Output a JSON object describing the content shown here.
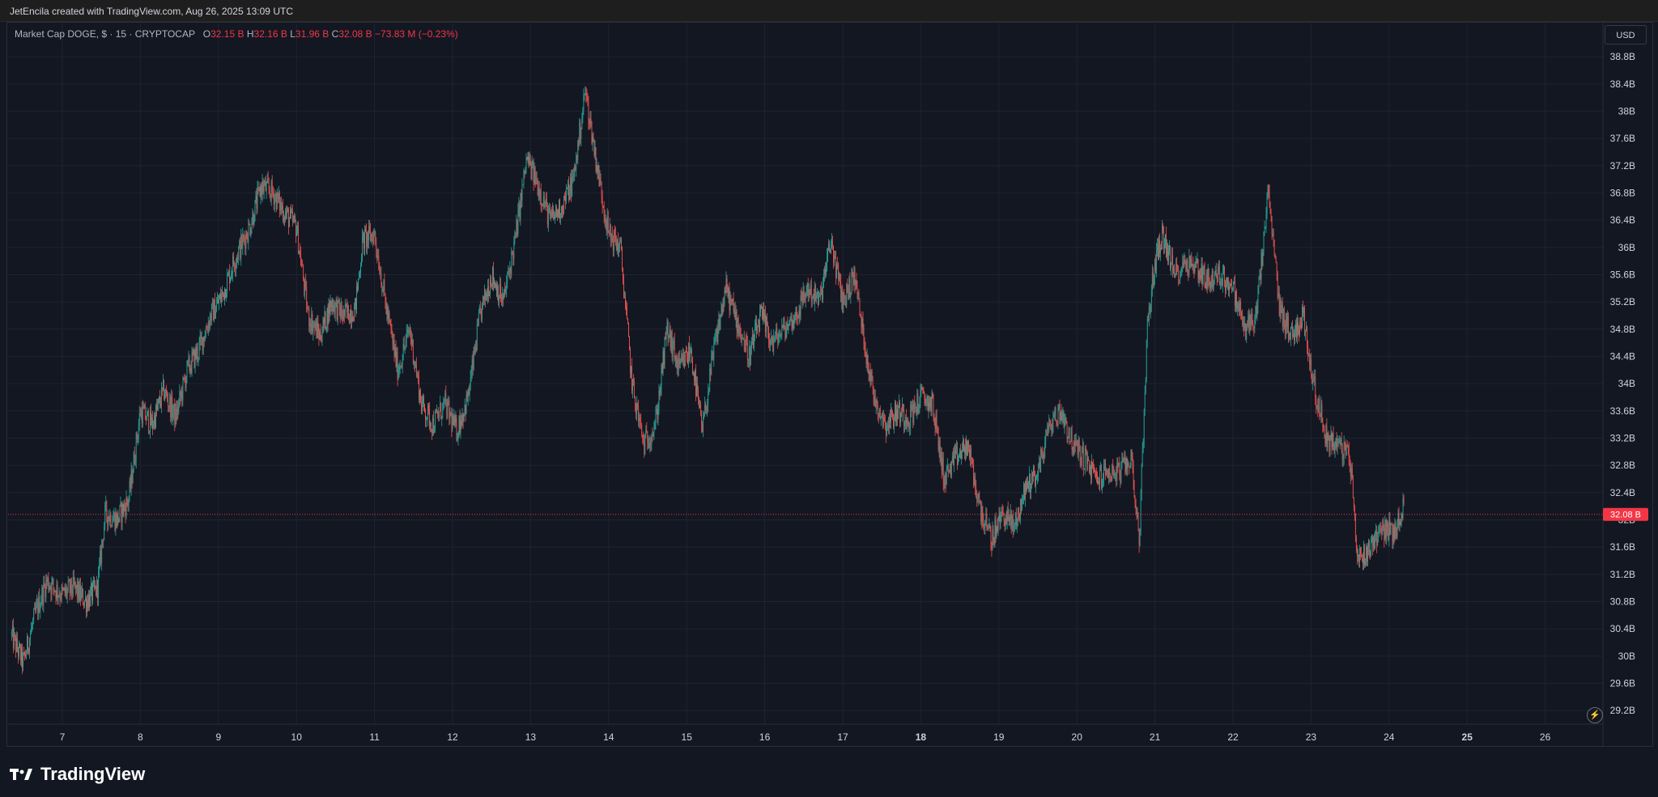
{
  "header": {
    "credit": "JetEncila created with TradingView.com, Aug 26, 2025 13:09 UTC"
  },
  "legend": {
    "symbol": "Market Cap DOGE, $ · 15 · CRYPTOCAP",
    "o_label": "O",
    "o_value": "32.15 B",
    "h_label": "H",
    "h_value": "32.16 B",
    "l_label": "L",
    "l_value": "31.96 B",
    "c_label": "C",
    "c_value": "32.08 B",
    "change": "−73.83 M (−0.23%)"
  },
  "controls": {
    "currency": "USD",
    "bolt_icon": "⚡"
  },
  "footer": {
    "brand": "TradingView"
  },
  "colors": {
    "up": "#26a69a",
    "down": "#ef5350",
    "grid": "#1f2330",
    "price_line": "#f23645"
  },
  "chart_data": {
    "type": "candlestick",
    "currency": "USD",
    "interval": "15",
    "ylim": [
      29.0,
      39.3
    ],
    "yticks": [
      "29.2B",
      "29.6B",
      "30B",
      "30.4B",
      "30.8B",
      "31.2B",
      "31.6B",
      "32B",
      "32.4B",
      "32.8B",
      "33.2B",
      "33.6B",
      "34B",
      "34.4B",
      "34.8B",
      "35.2B",
      "35.6B",
      "36B",
      "36.4B",
      "36.8B",
      "37.2B",
      "37.6B",
      "38B",
      "38.4B",
      "38.8B"
    ],
    "ytick_values": [
      29.2,
      29.6,
      30.0,
      30.4,
      30.8,
      31.2,
      31.6,
      32.0,
      32.4,
      32.8,
      33.2,
      33.6,
      34.0,
      34.4,
      34.8,
      35.2,
      35.6,
      36.0,
      36.4,
      36.8,
      37.2,
      37.6,
      38.0,
      38.4,
      38.8
    ],
    "xticks": [
      {
        "label": "7",
        "day": 7,
        "bold": false
      },
      {
        "label": "8",
        "day": 8,
        "bold": false
      },
      {
        "label": "9",
        "day": 9,
        "bold": false
      },
      {
        "label": "10",
        "day": 10,
        "bold": false
      },
      {
        "label": "11",
        "day": 11,
        "bold": false
      },
      {
        "label": "12",
        "day": 12,
        "bold": false
      },
      {
        "label": "13",
        "day": 13,
        "bold": false
      },
      {
        "label": "14",
        "day": 14,
        "bold": false
      },
      {
        "label": "15",
        "day": 15,
        "bold": false
      },
      {
        "label": "16",
        "day": 16,
        "bold": false
      },
      {
        "label": "17",
        "day": 17,
        "bold": false
      },
      {
        "label": "18",
        "day": 18,
        "bold": true
      },
      {
        "label": "19",
        "day": 19,
        "bold": false
      },
      {
        "label": "20",
        "day": 20,
        "bold": false
      },
      {
        "label": "21",
        "day": 21,
        "bold": false
      },
      {
        "label": "22",
        "day": 22,
        "bold": false
      },
      {
        "label": "23",
        "day": 23,
        "bold": false
      },
      {
        "label": "24",
        "day": 24,
        "bold": false
      },
      {
        "label": "25",
        "day": 25,
        "bold": true
      },
      {
        "label": "26",
        "day": 26,
        "bold": false
      }
    ],
    "last_price": 32.08,
    "last_price_label": "32.08 B",
    "path": [
      [
        6.35,
        30.3
      ],
      [
        6.5,
        29.9
      ],
      [
        6.65,
        30.6
      ],
      [
        6.8,
        31.1
      ],
      [
        7.0,
        30.9
      ],
      [
        7.15,
        31.0
      ],
      [
        7.3,
        30.8
      ],
      [
        7.45,
        31.0
      ],
      [
        7.55,
        32.1
      ],
      [
        7.7,
        32.0
      ],
      [
        7.85,
        32.3
      ],
      [
        8.0,
        33.6
      ],
      [
        8.15,
        33.4
      ],
      [
        8.3,
        33.9
      ],
      [
        8.45,
        33.5
      ],
      [
        8.6,
        34.2
      ],
      [
        8.75,
        34.5
      ],
      [
        8.9,
        35.0
      ],
      [
        9.05,
        35.3
      ],
      [
        9.2,
        35.8
      ],
      [
        9.4,
        36.3
      ],
      [
        9.55,
        36.9
      ],
      [
        9.7,
        36.8
      ],
      [
        9.85,
        36.5
      ],
      [
        10.0,
        36.3
      ],
      [
        10.15,
        35.0
      ],
      [
        10.3,
        34.7
      ],
      [
        10.45,
        35.2
      ],
      [
        10.6,
        35.0
      ],
      [
        10.75,
        35.1
      ],
      [
        10.85,
        36.1
      ],
      [
        11.0,
        36.2
      ],
      [
        11.15,
        35.1
      ],
      [
        11.3,
        34.2
      ],
      [
        11.45,
        34.8
      ],
      [
        11.6,
        33.7
      ],
      [
        11.75,
        33.4
      ],
      [
        11.9,
        33.7
      ],
      [
        12.05,
        33.3
      ],
      [
        12.2,
        33.8
      ],
      [
        12.35,
        35.0
      ],
      [
        12.5,
        35.6
      ],
      [
        12.65,
        35.2
      ],
      [
        12.8,
        36.1
      ],
      [
        12.95,
        37.3
      ],
      [
        13.1,
        36.9
      ],
      [
        13.25,
        36.4
      ],
      [
        13.4,
        36.6
      ],
      [
        13.55,
        37.0
      ],
      [
        13.7,
        38.3
      ],
      [
        13.85,
        37.2
      ],
      [
        14.0,
        36.2
      ],
      [
        14.15,
        36.0
      ],
      [
        14.3,
        34.0
      ],
      [
        14.45,
        33.1
      ],
      [
        14.6,
        33.4
      ],
      [
        14.75,
        34.8
      ],
      [
        14.9,
        34.2
      ],
      [
        15.05,
        34.5
      ],
      [
        15.2,
        33.3
      ],
      [
        15.35,
        34.5
      ],
      [
        15.5,
        35.4
      ],
      [
        15.65,
        34.9
      ],
      [
        15.8,
        34.4
      ],
      [
        15.95,
        35.0
      ],
      [
        16.1,
        34.6
      ],
      [
        16.25,
        34.8
      ],
      [
        16.4,
        35.0
      ],
      [
        16.55,
        35.4
      ],
      [
        16.7,
        35.2
      ],
      [
        16.85,
        36.1
      ],
      [
        17.0,
        35.2
      ],
      [
        17.15,
        35.6
      ],
      [
        17.25,
        34.8
      ],
      [
        17.4,
        33.8
      ],
      [
        17.55,
        33.4
      ],
      [
        17.7,
        33.6
      ],
      [
        17.85,
        33.5
      ],
      [
        18.0,
        33.8
      ],
      [
        18.15,
        33.7
      ],
      [
        18.3,
        32.6
      ],
      [
        18.45,
        32.9
      ],
      [
        18.6,
        33.1
      ],
      [
        18.75,
        32.2
      ],
      [
        18.9,
        31.7
      ],
      [
        19.05,
        32.1
      ],
      [
        19.2,
        31.9
      ],
      [
        19.35,
        32.5
      ],
      [
        19.5,
        32.7
      ],
      [
        19.65,
        33.4
      ],
      [
        19.8,
        33.6
      ],
      [
        19.95,
        33.1
      ],
      [
        20.1,
        32.9
      ],
      [
        20.25,
        32.6
      ],
      [
        20.4,
        32.7
      ],
      [
        20.55,
        32.7
      ],
      [
        20.7,
        32.9
      ],
      [
        20.8,
        31.7
      ],
      [
        20.9,
        34.8
      ],
      [
        21.0,
        35.8
      ],
      [
        21.1,
        36.2
      ],
      [
        21.25,
        35.6
      ],
      [
        21.4,
        35.8
      ],
      [
        21.55,
        35.7
      ],
      [
        21.7,
        35.5
      ],
      [
        21.85,
        35.6
      ],
      [
        22.0,
        35.4
      ],
      [
        22.15,
        34.8
      ],
      [
        22.3,
        35.0
      ],
      [
        22.45,
        36.8
      ],
      [
        22.6,
        35.1
      ],
      [
        22.75,
        34.7
      ],
      [
        22.9,
        35.0
      ],
      [
        23.05,
        33.9
      ],
      [
        23.2,
        33.2
      ],
      [
        23.35,
        33.1
      ],
      [
        23.5,
        32.9
      ],
      [
        23.6,
        31.4
      ],
      [
        23.75,
        31.6
      ],
      [
        23.9,
        31.9
      ],
      [
        24.05,
        31.8
      ],
      [
        24.2,
        32.2
      ]
    ]
  }
}
